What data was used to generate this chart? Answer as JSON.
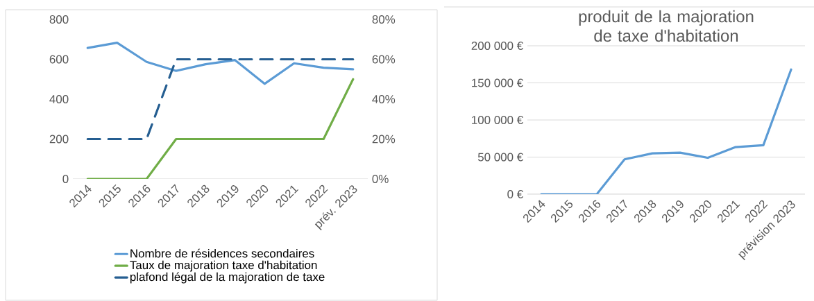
{
  "chart_data": [
    {
      "type": "line",
      "categories": [
        "2014",
        "2015",
        "2016",
        "2017",
        "2018",
        "2019",
        "2020",
        "2021",
        "2022",
        "prév. 2023"
      ],
      "series": [
        {
          "name": "Nombre de résidences secondaires",
          "color": "#5b9bd5",
          "values": [
            657,
            683,
            587,
            542,
            575,
            596,
            477,
            580,
            558,
            550
          ]
        },
        {
          "name": "Taux de majoration taxe d'habitation",
          "color": "#70ad47",
          "axis": "y2",
          "values": [
            0,
            0,
            0,
            20,
            20,
            20,
            20,
            20,
            20,
            50
          ]
        },
        {
          "name": "plafond légal de la majoration de taxe",
          "color": "#255e91",
          "axis": "y2",
          "line_style": "dashed",
          "values": [
            20,
            20,
            20,
            60,
            60,
            60,
            60,
            60,
            60,
            60
          ]
        }
      ],
      "ylim": [
        0,
        800
      ],
      "yticks": [
        0,
        200,
        400,
        600,
        800
      ],
      "y2lim": [
        0,
        80
      ],
      "y2ticks": [
        {
          "value": 0,
          "label": "0%"
        },
        {
          "value": 20,
          "label": "20%"
        },
        {
          "value": 40,
          "label": "40%"
        },
        {
          "value": 60,
          "label": "60%"
        },
        {
          "value": 80,
          "label": "80%"
        }
      ],
      "grid": false,
      "legend": "bottom",
      "line_style": "solid",
      "marker": "none"
    },
    {
      "type": "line",
      "title": "produit de la majoration de taxe d'habitation",
      "categories": [
        "2014",
        "2015",
        "2016",
        "2017",
        "2018",
        "2019",
        "2020",
        "2021",
        "2022",
        "prévision 2023"
      ],
      "series": [
        {
          "color": "#5b9bd5",
          "values": [
            0,
            0,
            0,
            47000,
            55000,
            56000,
            49000,
            63500,
            66000,
            168000
          ]
        }
      ],
      "ylim": [
        0,
        200000
      ],
      "yticks": [
        {
          "value": 0,
          "label": "0 €"
        },
        {
          "value": 50000,
          "label": "50 000 €"
        },
        {
          "value": 100000,
          "label": "100 000 €"
        },
        {
          "value": 150000,
          "label": "150 000 €"
        },
        {
          "value": 200000,
          "label": "200 000 €"
        }
      ],
      "grid": "y",
      "legend": false,
      "marker": "none"
    }
  ]
}
